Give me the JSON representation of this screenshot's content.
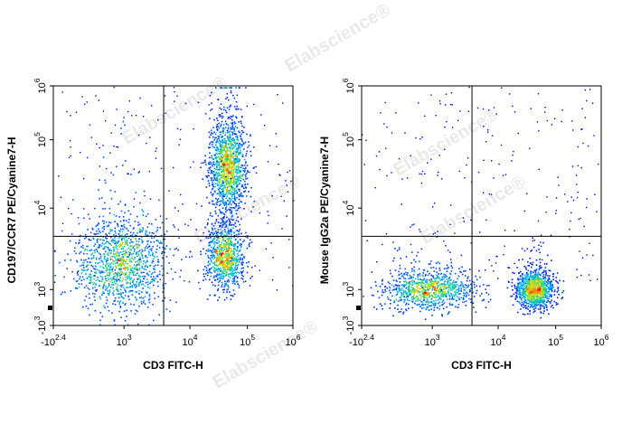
{
  "watermark": {
    "text": "Elabscience",
    "mark": "®"
  },
  "chart_data": [
    {
      "type": "scatter",
      "subtype": "flow-cytometry-density-plot",
      "title": "",
      "xlabel": "CD3 FITC-H",
      "ylabel": "CD197/CCR7 PE/Cyanine7-H",
      "x_scale": "biexponential",
      "y_scale": "biexponential",
      "xlim": [
        -251,
        1000000
      ],
      "ylim": [
        -1000,
        1000000
      ],
      "x_ticks": [
        {
          "base": "-10",
          "exp": "2.4"
        },
        {
          "base": "10",
          "exp": "3"
        },
        {
          "base": "10",
          "exp": "4"
        },
        {
          "base": "10",
          "exp": "5"
        },
        {
          "base": "10",
          "exp": "6"
        }
      ],
      "y_ticks": [
        {
          "base": "-10",
          "exp": "3"
        },
        {
          "base": "10",
          "exp": "3"
        },
        {
          "base": "10",
          "exp": "4"
        },
        {
          "base": "10",
          "exp": "5"
        },
        {
          "base": "10",
          "exp": "6"
        }
      ],
      "quadrant_gate": {
        "x": 4000,
        "y": 4500
      },
      "populations": [
        {
          "x_center": 500,
          "y_center": 2000,
          "spread_x": "wide",
          "spread_y": "wide",
          "density": "medium"
        },
        {
          "x_center": 45000,
          "y_center": 40000,
          "spread_x": "narrow",
          "spread_y": "wide",
          "density": "high"
        },
        {
          "x_center": 40000,
          "y_center": 2500,
          "spread_x": "narrow",
          "spread_y": "medium",
          "density": "medium"
        }
      ],
      "grid": false,
      "legend": "none"
    },
    {
      "type": "scatter",
      "subtype": "flow-cytometry-density-plot",
      "title": "",
      "xlabel": "CD3 FITC-H",
      "ylabel": "Mouse IgG2a PE/Cyanine7-H",
      "x_scale": "biexponential",
      "y_scale": "biexponential",
      "xlim": [
        -251,
        1000000
      ],
      "ylim": [
        -1000,
        1000000
      ],
      "x_ticks": [
        {
          "base": "-10",
          "exp": "2.4"
        },
        {
          "base": "10",
          "exp": "3"
        },
        {
          "base": "10",
          "exp": "4"
        },
        {
          "base": "10",
          "exp": "5"
        },
        {
          "base": "10",
          "exp": "6"
        }
      ],
      "y_ticks": [
        {
          "base": "-10",
          "exp": "3"
        },
        {
          "base": "10",
          "exp": "3"
        },
        {
          "base": "10",
          "exp": "4"
        },
        {
          "base": "10",
          "exp": "5"
        },
        {
          "base": "10",
          "exp": "6"
        }
      ],
      "quadrant_gate": {
        "x": 4000,
        "y": 4500
      },
      "populations": [
        {
          "x_center": 450,
          "y_center": 1000,
          "spread_x": "wide",
          "spread_y": "narrow",
          "density": "medium"
        },
        {
          "x_center": 42000,
          "y_center": 1000,
          "spread_x": "narrow",
          "spread_y": "narrow",
          "density": "high"
        }
      ],
      "grid": false,
      "legend": "none"
    }
  ]
}
